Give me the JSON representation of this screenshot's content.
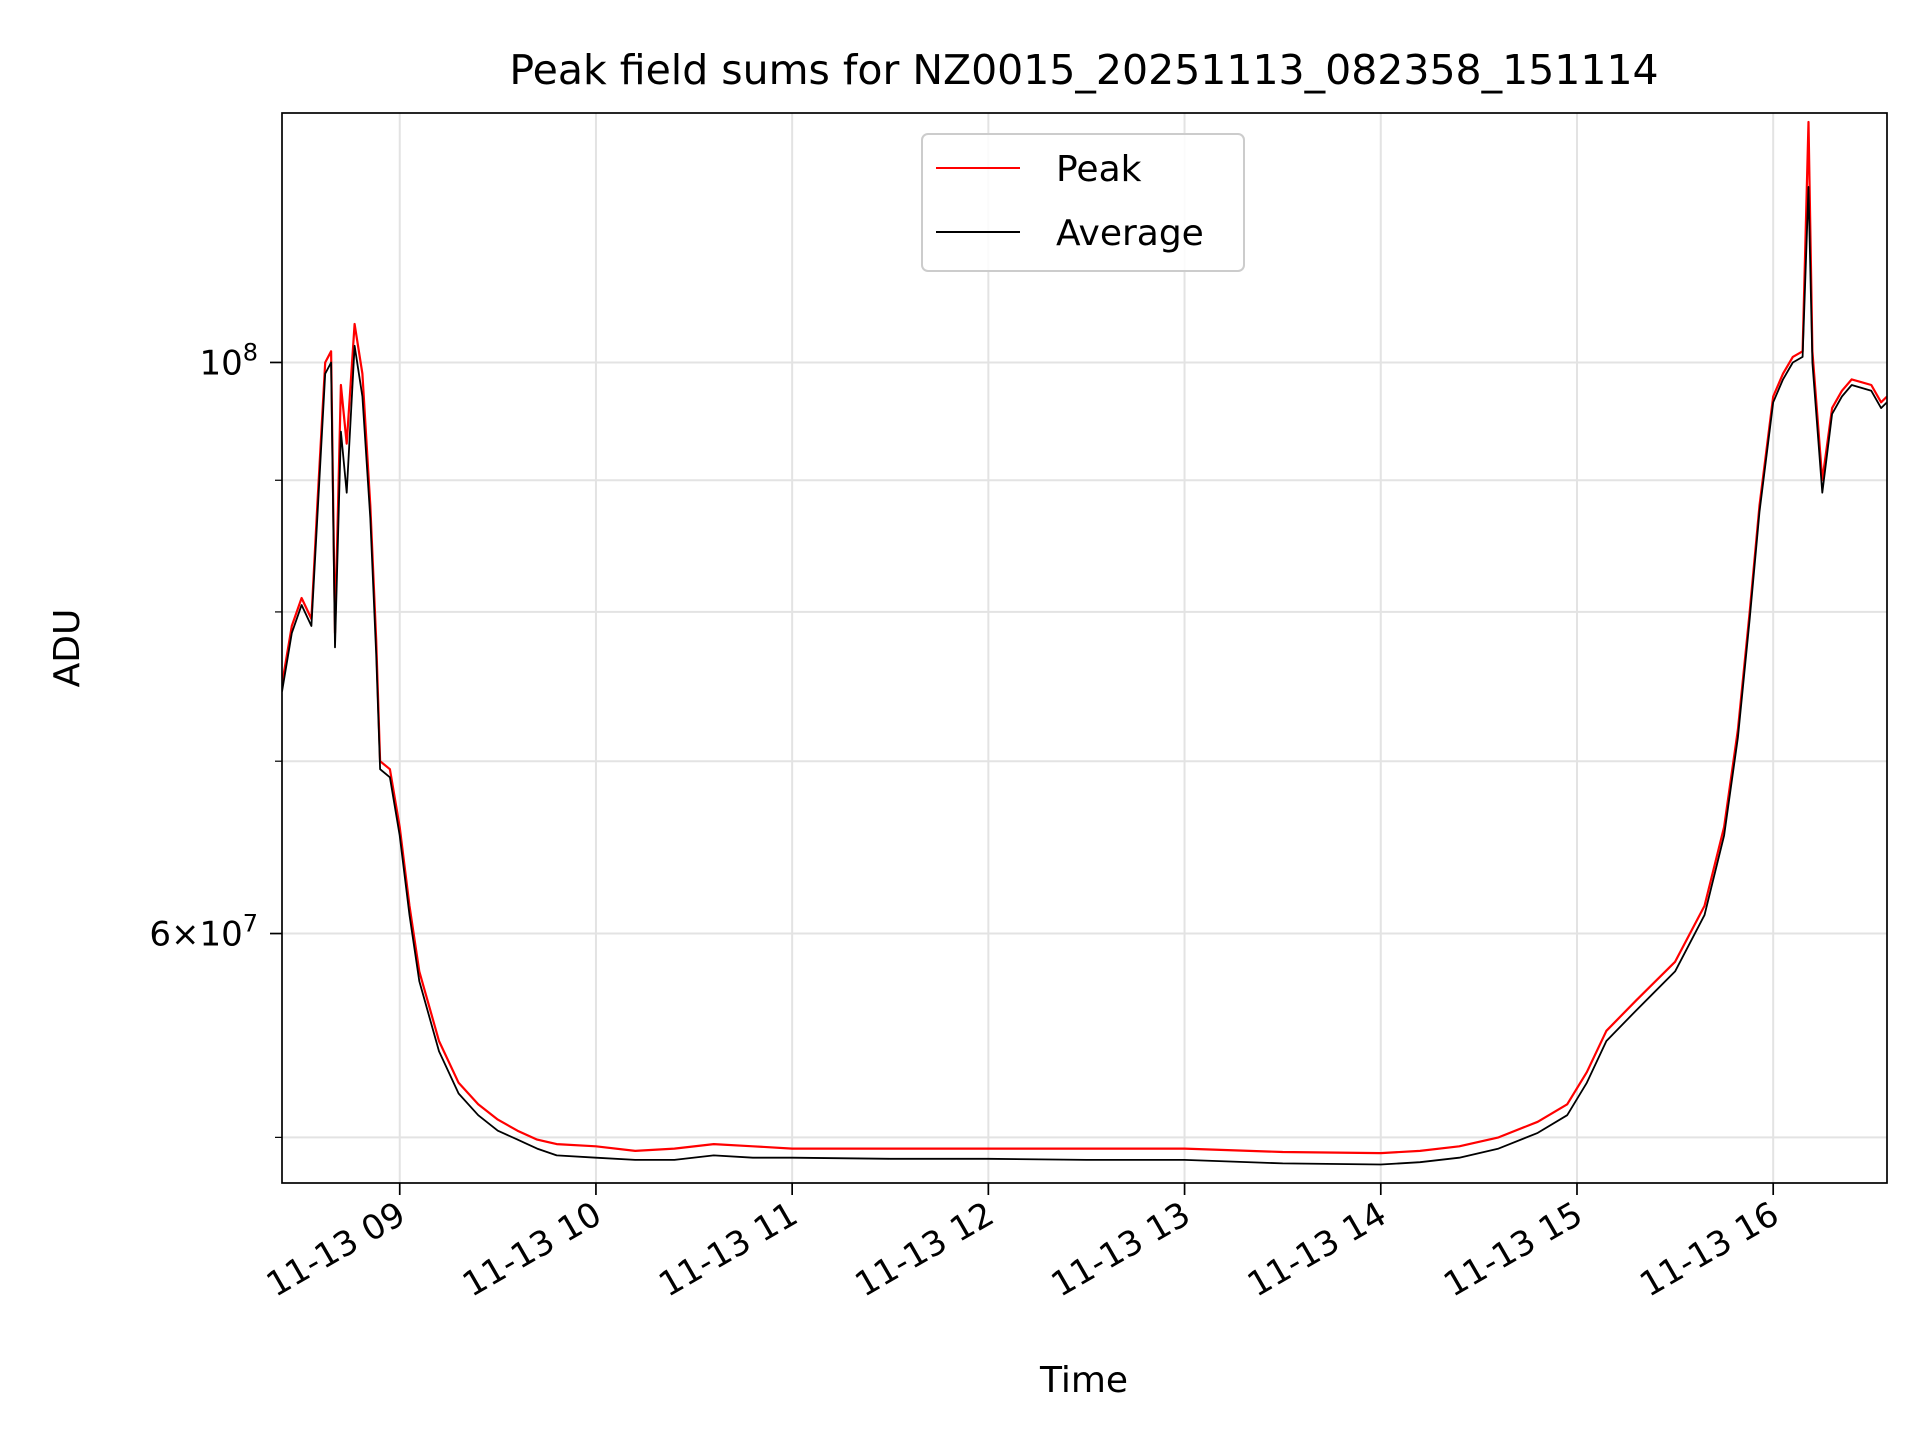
{
  "chart_data": {
    "type": "line",
    "title": "Peak field sums for NZ0015_20251113_082358_151114",
    "xlabel": "Time",
    "ylabel": "ADU",
    "yscale": "log",
    "ylim": [
      48000000,
      125000000
    ],
    "xlim_hours": [
      8.4,
      16.58
    ],
    "grid": true,
    "legend_position": "upper-center",
    "x_ticks": [
      {
        "hour": 9,
        "label": "11-13 09"
      },
      {
        "hour": 10,
        "label": "11-13 10"
      },
      {
        "hour": 11,
        "label": "11-13 11"
      },
      {
        "hour": 12,
        "label": "11-13 12"
      },
      {
        "hour": 13,
        "label": "11-13 13"
      },
      {
        "hour": 14,
        "label": "11-13 14"
      },
      {
        "hour": 15,
        "label": "11-13 15"
      },
      {
        "hour": 16,
        "label": "11-13 16"
      }
    ],
    "y_major_ticks": [
      {
        "value": 60000000,
        "mantissa": "6",
        "base": "10",
        "exp": "7"
      },
      {
        "value": 100000000,
        "mantissa": "",
        "base": "10",
        "exp": "8"
      }
    ],
    "y_minor_ticks": [
      50000000,
      70000000,
      80000000,
      90000000
    ],
    "series": [
      {
        "name": "Peak",
        "color": "#ff0000",
        "x_hours": [
          8.4,
          8.45,
          8.5,
          8.55,
          8.58,
          8.62,
          8.65,
          8.67,
          8.7,
          8.73,
          8.77,
          8.81,
          8.85,
          8.88,
          8.9,
          8.95,
          9.0,
          9.05,
          9.1,
          9.2,
          9.3,
          9.4,
          9.5,
          9.6,
          9.7,
          9.8,
          10.0,
          10.2,
          10.4,
          10.6,
          10.8,
          11.0,
          11.5,
          12.0,
          12.5,
          13.0,
          13.5,
          14.0,
          14.2,
          14.4,
          14.6,
          14.8,
          14.95,
          15.05,
          15.15,
          15.3,
          15.5,
          15.65,
          15.75,
          15.82,
          15.88,
          15.93,
          16.0,
          16.05,
          16.1,
          16.15,
          16.18,
          16.2,
          16.25,
          16.3,
          16.35,
          16.4,
          16.5,
          16.55,
          16.58
        ],
        "y": [
          75000000,
          79000000,
          81000000,
          79500000,
          88000000,
          100000000,
          101000000,
          78500000,
          98000000,
          93000000,
          103500000,
          99000000,
          88000000,
          78000000,
          70000000,
          69500000,
          66000000,
          61500000,
          58000000,
          54500000,
          52500000,
          51500000,
          50800000,
          50300000,
          49900000,
          49700000,
          49600000,
          49400000,
          49500000,
          49700000,
          49600000,
          49500000,
          49500000,
          49500000,
          49500000,
          49500000,
          49350000,
          49300000,
          49400000,
          49600000,
          50000000,
          50700000,
          51500000,
          53000000,
          55000000,
          56500000,
          58500000,
          61500000,
          66000000,
          72000000,
          80000000,
          88000000,
          97000000,
          99000000,
          100500000,
          101000000,
          124000000,
          101000000,
          90000000,
          96000000,
          97500000,
          98500000,
          98000000,
          96500000,
          97000000
        ]
      },
      {
        "name": "Average",
        "color": "#000000",
        "x_hours": [
          8.4,
          8.45,
          8.5,
          8.55,
          8.58,
          8.62,
          8.65,
          8.67,
          8.7,
          8.73,
          8.77,
          8.81,
          8.85,
          8.88,
          8.9,
          8.95,
          9.0,
          9.05,
          9.1,
          9.2,
          9.3,
          9.4,
          9.5,
          9.6,
          9.7,
          9.8,
          10.0,
          10.2,
          10.4,
          10.6,
          10.8,
          11.0,
          11.5,
          12.0,
          12.5,
          13.0,
          13.5,
          14.0,
          14.2,
          14.4,
          14.6,
          14.8,
          14.95,
          15.05,
          15.15,
          15.3,
          15.5,
          15.65,
          15.75,
          15.82,
          15.88,
          15.93,
          16.0,
          16.05,
          16.1,
          16.15,
          16.18,
          16.2,
          16.25,
          16.3,
          16.35,
          16.4,
          16.5,
          16.55,
          16.58
        ],
        "y": [
          74500000,
          78500000,
          80500000,
          79000000,
          87000000,
          99000000,
          100000000,
          77500000,
          94000000,
          89000000,
          101500000,
          97000000,
          87000000,
          77000000,
          69500000,
          69000000,
          65500000,
          61000000,
          57500000,
          54000000,
          52000000,
          51000000,
          50300000,
          49900000,
          49500000,
          49200000,
          49100000,
          49000000,
          49000000,
          49200000,
          49100000,
          49100000,
          49050000,
          49050000,
          49000000,
          49000000,
          48850000,
          48800000,
          48900000,
          49100000,
          49500000,
          50200000,
          51000000,
          52500000,
          54500000,
          56000000,
          58000000,
          61000000,
          65500000,
          71500000,
          79500000,
          87500000,
          96500000,
          98500000,
          100000000,
          100500000,
          117000000,
          100000000,
          89000000,
          95500000,
          97000000,
          98000000,
          97500000,
          96000000,
          96500000
        ]
      }
    ]
  }
}
